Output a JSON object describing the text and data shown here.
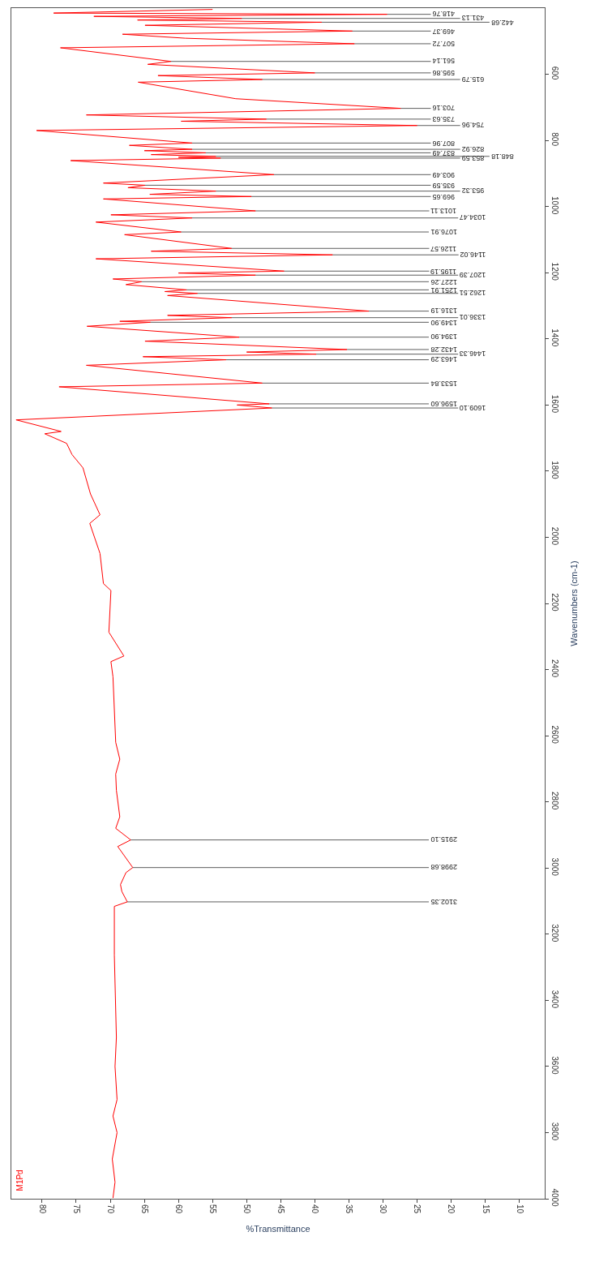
{
  "chart_data": {
    "type": "line",
    "xlabel": "%Transmittance",
    "ylabel": "Wavenumbers (cm-1)",
    "xlim": [
      84.5,
      6.3
    ],
    "ylim": [
      4000,
      400
    ],
    "xticks": [
      80,
      75,
      70,
      65,
      60,
      55,
      50,
      45,
      40,
      35,
      30,
      25,
      20,
      15,
      10
    ],
    "yticks": [
      600,
      800,
      1000,
      1200,
      1400,
      1600,
      1800,
      2000,
      2200,
      2400,
      2600,
      2800,
      3000,
      3200,
      3400,
      3600,
      3800,
      4000
    ],
    "marker": "none",
    "line_style": "solid",
    "series": [
      {
        "color": "#ff0000",
        "values": [
          404,
          415,
          418.76,
          425,
          431.13,
          436,
          442.68,
          452,
          469.37,
          479,
          491,
          507.72,
          520,
          561.14,
          570,
          595.86,
          604,
          615.79,
          624,
          674,
          703.16,
          723,
          735.63,
          742,
          754.96,
          770,
          807.96,
          815,
          826.92,
          831,
          837.49,
          843,
          848.18,
          851,
          853.59,
          861,
          903.49,
          929,
          935.59,
          943,
          953.32,
          963,
          969.65,
          977,
          1013.11,
          1025,
          1034.47,
          1047,
          1076.91,
          1085,
          1126.57,
          1135,
          1146.02,
          1158,
          1195.19,
          1201,
          1207.39,
          1219,
          1227.26,
          1236,
          1251.91,
          1257,
          1262.51,
          1269,
          1316.19,
          1329,
          1336.01,
          1347,
          1349.9,
          1362,
          1394.9,
          1407,
          1432.28,
          1440,
          1446.33,
          1454,
          1463.29,
          1480,
          1533.84,
          1545,
          1596.6,
          1600,
          1609.1,
          1645,
          1680,
          1687,
          1716,
          1750,
          1790,
          1869,
          1932,
          1958,
          2049,
          2140,
          2161,
          2287,
          2359,
          2376,
          2422,
          2620,
          2671,
          2716,
          2765,
          2845,
          2880,
          2915.1,
          2935,
          2998.68,
          3014,
          3050,
          3071,
          3102.35,
          3116,
          3263,
          3512,
          3600,
          3700,
          3750,
          3800,
          3880,
          3950,
          3998
        ],
        "x": [
          55,
          78.3,
          29.4,
          72.4,
          50.7,
          66,
          39,
          64.9,
          34.5,
          68.2,
          59,
          34.2,
          77.3,
          61.1,
          64.5,
          40.0,
          63,
          47.7,
          65.9,
          51.6,
          27.4,
          73.5,
          47.1,
          59.6,
          25.0,
          80.8,
          58,
          67.2,
          58,
          65,
          56,
          64,
          54.5,
          60,
          53.8,
          75.8,
          46,
          71,
          64.9,
          67.4,
          54.5,
          64.2,
          49.3,
          71,
          48.7,
          69.9,
          58,
          72.1,
          59.6,
          67.9,
          52.2,
          64,
          37.4,
          72.1,
          44.5,
          60,
          48.7,
          69.6,
          65.4,
          67.7,
          58.8,
          62,
          57.2,
          61.6,
          32.1,
          61.6,
          52.2,
          68.6,
          64.1,
          73.4,
          51.1,
          64.9,
          35.3,
          50,
          39.8,
          65.2,
          53.0,
          73.5,
          47.7,
          77.5,
          46.7,
          51.4,
          46.3,
          83.8,
          77.2,
          79.6,
          76.4,
          75.6,
          74,
          72.9,
          71.5,
          73,
          71.5,
          71,
          69.9,
          70.2,
          68,
          69.9,
          69.6,
          69.2,
          68.6,
          69.2,
          69.1,
          68.6,
          69.2,
          67.0,
          68.9,
          66.7,
          67.7,
          68.5,
          68.3,
          67.5,
          69.4,
          69.4,
          69.1,
          69.3,
          69.0,
          69.6,
          69.0,
          69.7,
          69.3,
          69.6
        ]
      }
    ],
    "annotations": [
      {
        "text": "418.76",
        "y": 418.76,
        "x": 29.4
      },
      {
        "text": "431.13",
        "y": 431.13,
        "x": 50.7
      },
      {
        "text": "442.68",
        "y": 442.68,
        "x": 39
      },
      {
        "text": "469.37",
        "y": 469.37,
        "x": 34.5
      },
      {
        "text": "507.72",
        "y": 507.72,
        "x": 34.2
      },
      {
        "text": "561.14",
        "y": 561.14,
        "x": 61.1
      },
      {
        "text": "595.86",
        "y": 595.86,
        "x": 40.0
      },
      {
        "text": "615.79",
        "y": 615.79,
        "x": 47.7
      },
      {
        "text": "703.16",
        "y": 703.16,
        "x": 27.4
      },
      {
        "text": "735.63",
        "y": 735.63,
        "x": 47.1
      },
      {
        "text": "754.96",
        "y": 754.96,
        "x": 25.0
      },
      {
        "text": "807.96",
        "y": 807.96,
        "x": 58
      },
      {
        "text": "826.92",
        "y": 826.92,
        "x": 58
      },
      {
        "text": "837.49",
        "y": 837.49,
        "x": 56
      },
      {
        "text": "848.18",
        "y": 848.18,
        "x": 54.5
      },
      {
        "text": "853.59",
        "y": 853.59,
        "x": 53.8
      },
      {
        "text": "903.49",
        "y": 903.49,
        "x": 46
      },
      {
        "text": "935.59",
        "y": 935.59,
        "x": 64.9
      },
      {
        "text": "953.32",
        "y": 953.32,
        "x": 54.5
      },
      {
        "text": "969.65",
        "y": 969.65,
        "x": 49.3
      },
      {
        "text": "1013.11",
        "y": 1013.11,
        "x": 48.7
      },
      {
        "text": "1034.47",
        "y": 1034.47,
        "x": 58
      },
      {
        "text": "1076.91",
        "y": 1076.91,
        "x": 59.6
      },
      {
        "text": "1126.57",
        "y": 1126.57,
        "x": 52.2
      },
      {
        "text": "1146.02",
        "y": 1146.02,
        "x": 37.4
      },
      {
        "text": "1195.19",
        "y": 1195.19,
        "x": 44.5
      },
      {
        "text": "1207.39",
        "y": 1207.39,
        "x": 48.7
      },
      {
        "text": "1227.26",
        "y": 1227.26,
        "x": 65.4
      },
      {
        "text": "1251.91",
        "y": 1251.91,
        "x": 58.8
      },
      {
        "text": "1262.51",
        "y": 1262.51,
        "x": 57.2
      },
      {
        "text": "1316.19",
        "y": 1316.19,
        "x": 32.1
      },
      {
        "text": "1336.01",
        "y": 1336.01,
        "x": 52.2
      },
      {
        "text": "1349.90",
        "y": 1349.9,
        "x": 64.1
      },
      {
        "text": "1394.90",
        "y": 1394.9,
        "x": 51.1
      },
      {
        "text": "1432.28",
        "y": 1432.28,
        "x": 35.3
      },
      {
        "text": "1446.33",
        "y": 1446.33,
        "x": 39.8
      },
      {
        "text": "1463.29",
        "y": 1463.29,
        "x": 53.0
      },
      {
        "text": "1533.84",
        "y": 1533.84,
        "x": 47.7
      },
      {
        "text": "1596.60",
        "y": 1596.6,
        "x": 46.7
      },
      {
        "text": "1609.10",
        "y": 1609.1,
        "x": 46.3
      },
      {
        "text": "2915.10",
        "y": 2915.1,
        "x": 67.0
      },
      {
        "text": "2998.68",
        "y": 2998.68,
        "x": 66.7
      },
      {
        "text": "3102.35",
        "y": 3102.35,
        "x": 67.5
      },
      "M1Pd"
    ]
  }
}
